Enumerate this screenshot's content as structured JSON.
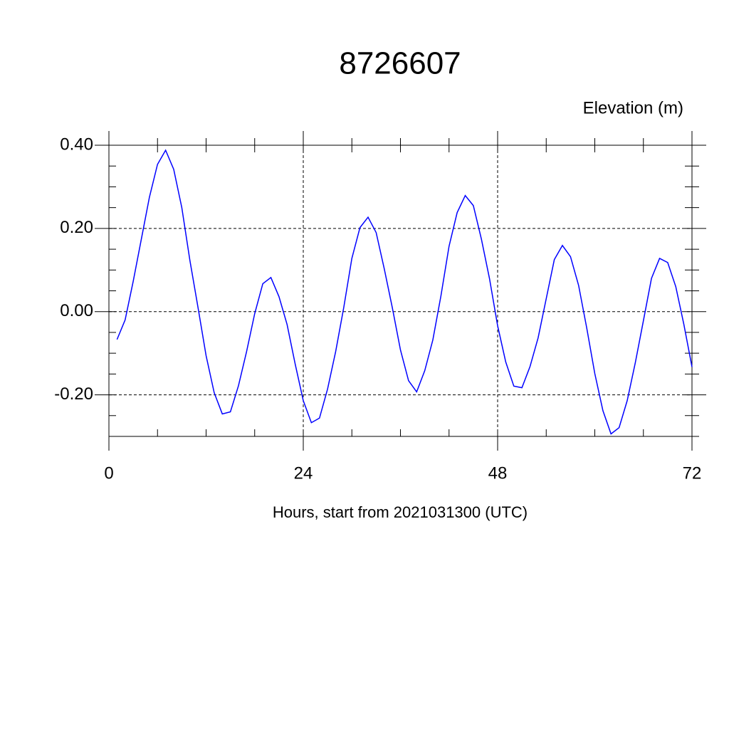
{
  "chart_data": {
    "type": "line",
    "title": "8726607",
    "y_label": "Elevation (m)",
    "x_label": "Hours, start from 2021031300 (UTC)",
    "color": "#0000ff",
    "x": [
      1,
      2,
      3,
      4,
      5,
      6,
      7,
      8,
      9,
      10,
      11,
      12,
      13,
      14,
      15,
      16,
      17,
      18,
      19,
      20,
      21,
      22,
      23,
      24,
      25,
      26,
      27,
      28,
      29,
      30,
      31,
      32,
      33,
      34,
      35,
      36,
      37,
      38,
      39,
      40,
      41,
      42,
      43,
      44,
      45,
      46,
      47,
      48,
      49,
      50,
      51,
      52,
      53,
      54,
      55,
      56,
      57,
      58,
      59,
      60,
      61,
      62,
      63,
      64,
      65,
      66,
      67,
      68,
      69,
      70,
      71,
      72
    ],
    "values": [
      -0.067,
      -0.02,
      0.073,
      0.174,
      0.275,
      0.354,
      0.388,
      0.342,
      0.25,
      0.123,
      0.01,
      -0.106,
      -0.195,
      -0.246,
      -0.241,
      -0.178,
      -0.096,
      -0.005,
      0.067,
      0.082,
      0.036,
      -0.031,
      -0.126,
      -0.214,
      -0.267,
      -0.256,
      -0.186,
      -0.096,
      0.01,
      0.128,
      0.202,
      0.227,
      0.19,
      0.103,
      0.009,
      -0.092,
      -0.166,
      -0.193,
      -0.142,
      -0.068,
      0.038,
      0.157,
      0.238,
      0.279,
      0.255,
      0.174,
      0.079,
      -0.034,
      -0.121,
      -0.179,
      -0.183,
      -0.132,
      -0.063,
      0.031,
      0.125,
      0.159,
      0.132,
      0.063,
      -0.039,
      -0.149,
      -0.238,
      -0.294,
      -0.279,
      -0.214,
      -0.123,
      -0.022,
      0.08,
      0.128,
      0.118,
      0.06,
      -0.031,
      -0.133
    ],
    "xlim": [
      0,
      72
    ],
    "ylim": [
      -0.3,
      0.4
    ],
    "xticks": [
      0,
      24,
      48,
      72
    ],
    "yticks": [
      {
        "value": 0.4,
        "label": "0.40"
      },
      {
        "value": 0.2,
        "label": "0.20"
      },
      {
        "value": 0,
        "label": "0.00"
      },
      {
        "value": -0.2,
        "label": "-0.20"
      }
    ],
    "xminorticks": [
      6,
      12,
      18,
      30,
      36,
      42,
      54,
      60,
      66
    ],
    "yminorticks": [
      -0.3,
      -0.25,
      -0.15,
      -0.1,
      -0.05,
      0.05,
      0.1,
      0.15,
      0.25,
      0.3,
      0.35
    ],
    "grid": true
  }
}
